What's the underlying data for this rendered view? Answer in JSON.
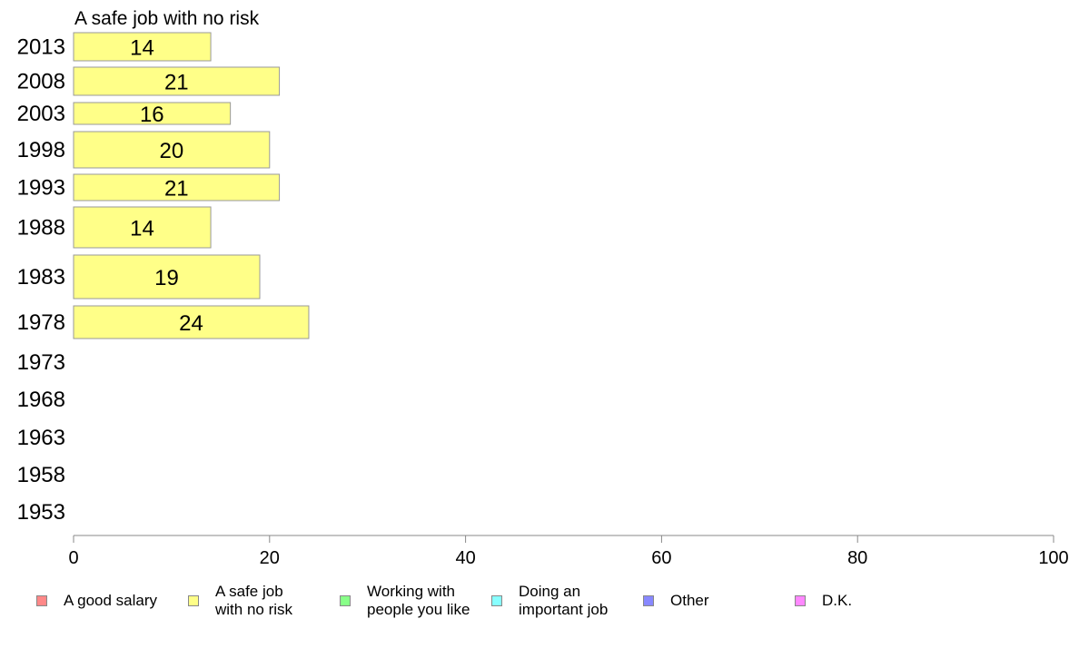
{
  "chart_data": {
    "type": "bar",
    "title": "A safe job with no risk",
    "categories": [
      "2013",
      "2008",
      "2003",
      "1998",
      "1993",
      "1988",
      "1983",
      "1978",
      "1973",
      "1968",
      "1963",
      "1958",
      "1953"
    ],
    "values": [
      14,
      21,
      16,
      20,
      21,
      14,
      19,
      24,
      null,
      null,
      null,
      null,
      null
    ],
    "data_labels": [
      "14",
      "21",
      "16",
      "20",
      "21",
      "14",
      "19",
      "24",
      "",
      "",
      "",
      "",
      ""
    ],
    "xlim": [
      0,
      100
    ],
    "x_ticks": [
      0,
      20,
      40,
      60,
      80,
      100
    ],
    "x_tick_labels": [
      "0",
      "20",
      "40",
      "60",
      "80",
      "100"
    ],
    "bar_color": "#ffff88",
    "legend": {
      "placement": "bottom",
      "items": [
        {
          "label": "A good salary",
          "color": "#ff8888"
        },
        {
          "label": "A safe job\nwith no risk",
          "color": "#ffff88"
        },
        {
          "label": "Working with\npeople you like",
          "color": "#88ff88"
        },
        {
          "label": "Doing an\nimportant job",
          "color": "#88ffff"
        },
        {
          "label": "Other",
          "color": "#8888ff"
        },
        {
          "label": "D.K.",
          "color": "#ff88ff"
        }
      ]
    }
  }
}
